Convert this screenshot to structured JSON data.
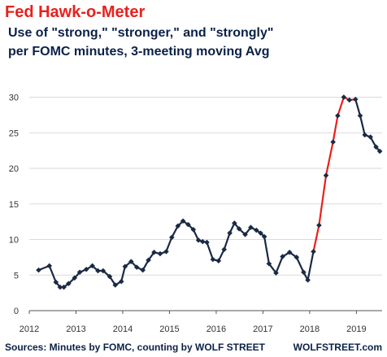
{
  "chart_data": {
    "type": "line",
    "title": "Fed Hawk-o-Meter",
    "subtitle_lines": [
      "Use of \"strong,\" \"stronger,\" and \"strongly\"",
      "per FOMC minutes, 3-meeting moving Avg"
    ],
    "xlabel": "",
    "ylabel": "",
    "x_tick_labels": [
      "2012",
      "2013",
      "2014",
      "2015",
      "2016",
      "2017",
      "2018",
      "2019"
    ],
    "y_ticks": [
      0,
      5,
      10,
      15,
      20,
      25,
      30
    ],
    "xlim": [
      2012,
      2019.55
    ],
    "ylim": [
      0,
      32
    ],
    "grid": "horizontal",
    "legend": "none",
    "series": [
      {
        "color": "#1a2a44",
        "x": [
          2012.2,
          2012.43,
          2012.57,
          2012.66,
          2012.74,
          2012.84,
          2012.97,
          2013.08,
          2013.22,
          2013.35,
          2013.47,
          2013.58,
          2013.72,
          2013.84,
          2013.97,
          2014.05,
          2014.18,
          2014.3,
          2014.43,
          2014.55,
          2014.67,
          2014.8,
          2014.93,
          2015.05,
          2015.18,
          2015.29,
          2015.4,
          2015.51,
          2015.62,
          2015.71,
          2015.8,
          2015.93,
          2016.05,
          2016.17,
          2016.29,
          2016.39,
          2016.49,
          2016.62,
          2016.74,
          2016.86,
          2016.95,
          2017.03,
          2017.13,
          2017.28,
          2017.42,
          2017.57,
          2017.72,
          2017.87,
          2017.96,
          2018.08
        ],
        "y": [
          5.7,
          6.3,
          4.0,
          3.3,
          3.3,
          3.8,
          4.6,
          5.4,
          5.8,
          6.3,
          5.6,
          5.6,
          4.8,
          3.6,
          4.1,
          6.2,
          6.9,
          6.1,
          5.7,
          7.1,
          8.2,
          8.0,
          8.3,
          10.3,
          11.9,
          12.6,
          12.1,
          11.4,
          9.9,
          9.7,
          9.6,
          7.2,
          7.0,
          8.6,
          10.9,
          12.3,
          11.5,
          10.7,
          11.7,
          11.3,
          10.9,
          10.4,
          6.6,
          5.3,
          7.6,
          8.2,
          7.5,
          5.4,
          4.3,
          8.3
        ]
      },
      {
        "color": "#e8211d",
        "x": [
          2018.08,
          2018.2,
          2018.35,
          2018.5,
          2018.6,
          2018.73,
          2018.85,
          2018.98
        ],
        "y": [
          8.3,
          12.0,
          19.0,
          23.7,
          27.4,
          30.0,
          29.6,
          29.7
        ]
      },
      {
        "color": "#1a2a44",
        "x": [
          2018.98,
          2019.08,
          2019.18,
          2019.3,
          2019.42,
          2019.5
        ],
        "y": [
          29.7,
          27.4,
          24.7,
          24.4,
          23.0,
          22.4
        ]
      }
    ],
    "markers": {
      "color": "#1a2a44",
      "x": [
        2012.2,
        2012.43,
        2012.57,
        2012.66,
        2012.74,
        2012.84,
        2012.97,
        2013.08,
        2013.22,
        2013.35,
        2013.47,
        2013.58,
        2013.72,
        2013.84,
        2013.97,
        2014.05,
        2014.18,
        2014.3,
        2014.43,
        2014.55,
        2014.67,
        2014.8,
        2014.93,
        2015.05,
        2015.18,
        2015.29,
        2015.4,
        2015.51,
        2015.62,
        2015.71,
        2015.8,
        2015.93,
        2016.05,
        2016.17,
        2016.29,
        2016.39,
        2016.49,
        2016.62,
        2016.74,
        2016.86,
        2016.95,
        2017.03,
        2017.13,
        2017.28,
        2017.42,
        2017.57,
        2017.72,
        2017.87,
        2017.96,
        2018.08,
        2018.2,
        2018.35,
        2018.5,
        2018.6,
        2018.73,
        2018.85,
        2018.98,
        2019.08,
        2019.18,
        2019.3,
        2019.42,
        2019.5
      ],
      "y": [
        5.7,
        6.3,
        4.0,
        3.3,
        3.3,
        3.8,
        4.6,
        5.4,
        5.8,
        6.3,
        5.6,
        5.6,
        4.8,
        3.6,
        4.1,
        6.2,
        6.9,
        6.1,
        5.7,
        7.1,
        8.2,
        8.0,
        8.3,
        10.3,
        11.9,
        12.6,
        12.1,
        11.4,
        9.9,
        9.7,
        9.6,
        7.2,
        7.0,
        8.6,
        10.9,
        12.3,
        11.5,
        10.7,
        11.7,
        11.3,
        10.9,
        10.4,
        6.6,
        5.3,
        7.6,
        8.2,
        7.5,
        5.4,
        4.3,
        8.3,
        12.0,
        19.0,
        23.7,
        27.4,
        30.0,
        29.6,
        29.7,
        27.4,
        24.7,
        24.4,
        23.0,
        22.4
      ]
    },
    "source": "Sources: Minutes by FOMC, counting by WOLF STREET",
    "watermark": "WOLFSTREET.com"
  }
}
